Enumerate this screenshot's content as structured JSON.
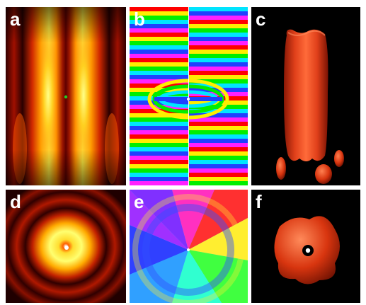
{
  "panels": [
    {
      "label": "a",
      "kind": "intensity-side"
    },
    {
      "label": "b",
      "kind": "phase-side"
    },
    {
      "label": "c",
      "kind": "isosurface-side"
    },
    {
      "label": "d",
      "kind": "intensity-transverse"
    },
    {
      "label": "e",
      "kind": "phase-transverse"
    },
    {
      "label": "f",
      "kind": "isosurface-transverse"
    }
  ],
  "colors": {
    "background": "#ffffff",
    "surface": "#e23a14",
    "surface_dark": "#7a1204",
    "hot_high": "#ffff66",
    "hot_low": "#1a0000"
  }
}
